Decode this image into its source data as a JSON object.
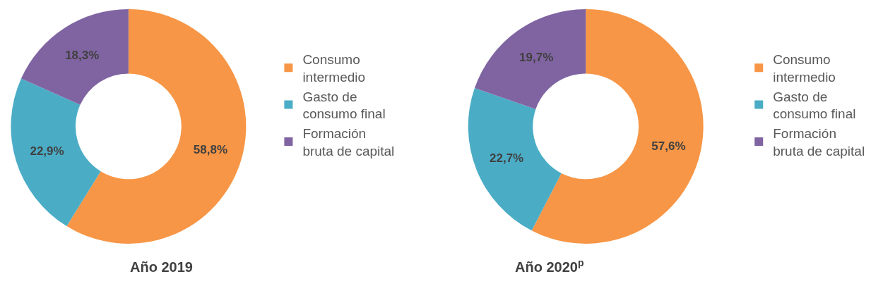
{
  "chart_data": [
    {
      "type": "donut",
      "title": "Año 2019",
      "categories": [
        "Consumo intermedio",
        "Gasto de consumo final",
        "Formación bruta de capital"
      ],
      "values": [
        58.8,
        22.9,
        18.3
      ],
      "value_labels": [
        "58,8%",
        "22,9%",
        "18,3%"
      ],
      "colors": [
        "#f79646",
        "#4bacc6",
        "#8064a2"
      ],
      "legend": "right"
    },
    {
      "type": "donut",
      "title": "Año 2020$^{p}$",
      "categories": [
        "Consumo intermedio",
        "Gasto de consumo final",
        "Formación bruta de capital"
      ],
      "values": [
        57.6,
        22.7,
        19.7
      ],
      "value_labels": [
        "57,6%",
        "22,7%",
        "19,7%"
      ],
      "colors": [
        "#f79646",
        "#4bacc6",
        "#8064a2"
      ],
      "legend": "right"
    }
  ]
}
